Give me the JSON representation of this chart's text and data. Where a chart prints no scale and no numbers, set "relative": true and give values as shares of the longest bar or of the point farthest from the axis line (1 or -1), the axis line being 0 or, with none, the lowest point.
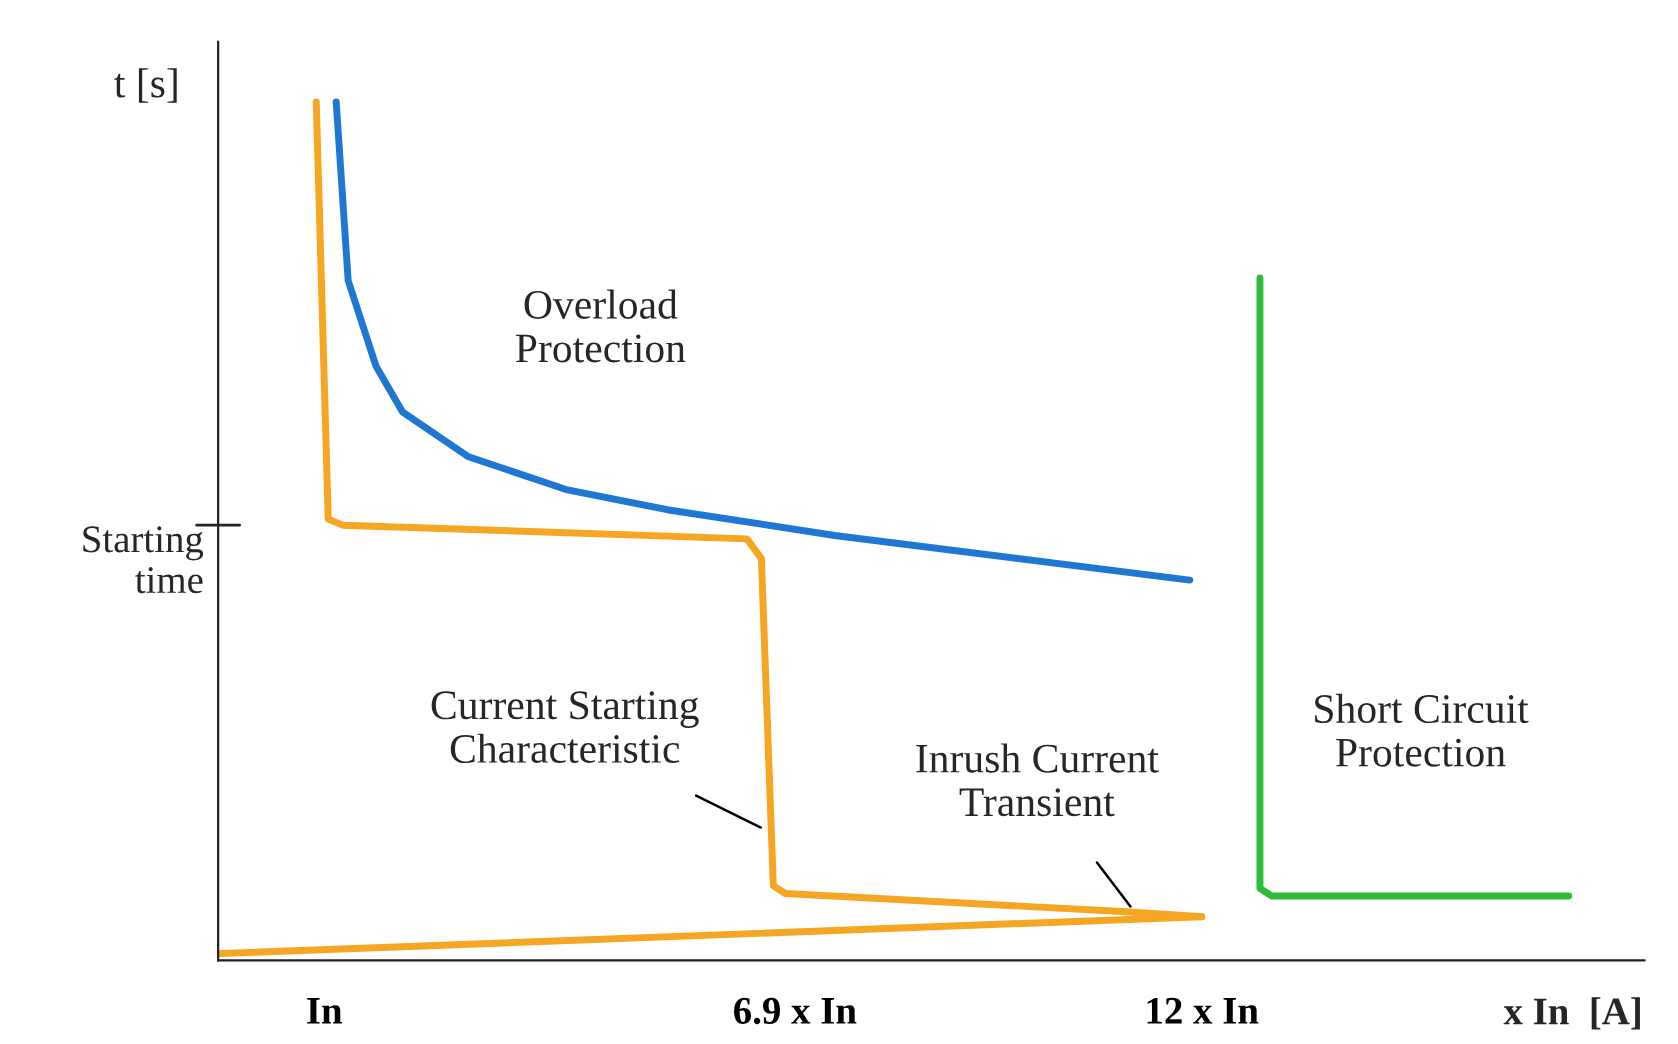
{
  "chart_data": {
    "type": "line",
    "relative": true,
    "xlabel": "x In  [A]",
    "ylabel": "t [s]",
    "xlim": [
      -0.33,
      17.55
    ],
    "xticks": [
      {
        "value": 1,
        "label": "In"
      },
      {
        "value": 6.9,
        "label": "6.9 x In"
      },
      {
        "value": 12,
        "label": "12 x In"
      }
    ],
    "ref_lines": [
      {
        "axis": "y",
        "value": 0.507,
        "label": "Starting time"
      }
    ],
    "grid": false,
    "marker": "none",
    "line_style": "solid",
    "series": [
      {
        "color": "#1f77d4",
        "x": [
          1.15,
          1.3,
          1.65,
          1.98,
          2.8,
          4.05,
          5.3,
          7.4,
          11.85
        ],
        "values": [
          1.0,
          0.792,
          0.692,
          0.639,
          0.587,
          0.548,
          0.525,
          0.495,
          0.443
        ]
      },
      {
        "color": "#f5a623",
        "x": [
          0.9,
          1.05,
          1.23,
          6.3,
          6.48,
          6.63,
          6.78,
          11.0,
          12
        ],
        "values": [
          1.0,
          0.514,
          0.507,
          0.491,
          0.468,
          0.087,
          0.078,
          0.057,
          0.051
        ]
      },
      {
        "color": "#f5a623",
        "x": [
          -0.33,
          12
        ],
        "values": [
          0.008,
          0.051
        ]
      },
      {
        "color": "#2dbb3a",
        "x": [
          12.73,
          12.73,
          12.88,
          16.6
        ],
        "values": [
          0.795,
          0.084,
          0.075,
          0.075
        ]
      }
    ],
    "annotations": [
      "Overload\nProtection",
      "Current Starting\nCharacteristic",
      "Inrush Current\nTransient",
      "Short Circuit\nProtection"
    ]
  }
}
